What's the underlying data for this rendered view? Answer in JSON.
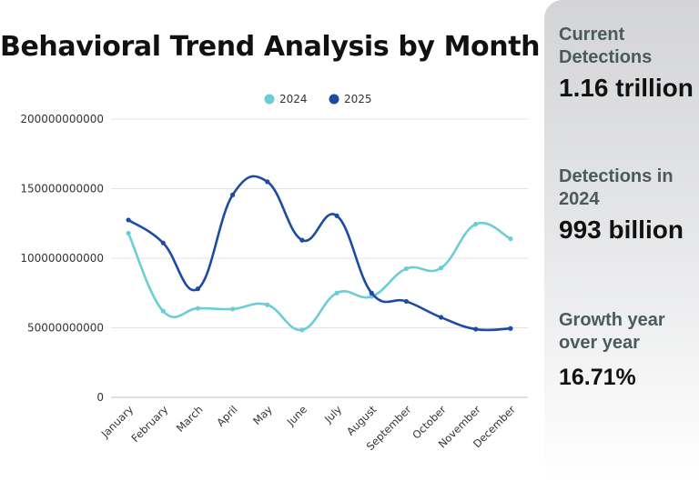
{
  "title": "Behavioral Trend Analysis by Month",
  "stats": [
    {
      "label": "Current Detections",
      "value": "1.16 trillion"
    },
    {
      "label": "Detections in 2024",
      "value": "993 billion"
    },
    {
      "label": "Growth year over year",
      "value": "16.71%"
    }
  ],
  "colors": {
    "s2024": "#6ccdd6",
    "s2025": "#1b4ba3",
    "grid": "#e3e3e3"
  },
  "chart_data": {
    "type": "line",
    "title": "Behavioral Trend Analysis by Month",
    "categories": [
      "January",
      "February",
      "March",
      "April",
      "May",
      "June",
      "July",
      "August",
      "September",
      "October",
      "November",
      "December"
    ],
    "series": [
      {
        "name": "2024",
        "values": [
          118000000000,
          62000000000,
          64000000000,
          63500000000,
          66500000000,
          48500000000,
          75000000000,
          72500000000,
          92500000000,
          93000000000,
          124500000000,
          114000000000
        ]
      },
      {
        "name": "2025",
        "values": [
          127500000000,
          111000000000,
          78000000000,
          145500000000,
          155000000000,
          113000000000,
          130500000000,
          75000000000,
          69000000000,
          57500000000,
          49000000000,
          49500000000
        ]
      }
    ],
    "yticks": [
      "0",
      "50000000000",
      "100000000000",
      "150000000000",
      "200000000000"
    ],
    "ylim": [
      0,
      200000000000
    ],
    "legend": "top-center",
    "grid": true
  }
}
